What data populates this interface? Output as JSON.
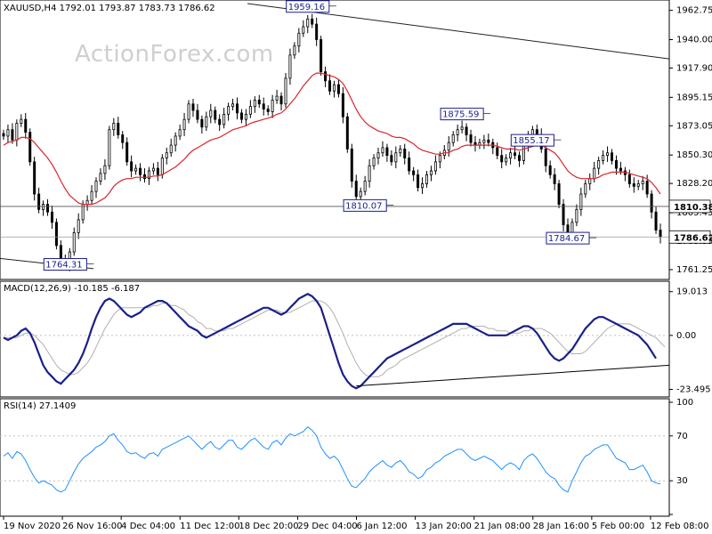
{
  "instrument": "XAUUSD,H4",
  "quote": "1792.01 1793.87 1783.73 1786.62",
  "watermark": "ActionForex.com",
  "colors": {
    "candle": "#000000",
    "ema": "#d9262c",
    "macd": "#1a1f8a",
    "signal": "#b0b0b0",
    "rsi": "#1e90ff",
    "grid": "#d8d8d8",
    "label_box": "#1a1f8a"
  },
  "chart_data": [
    {
      "type": "candlestick",
      "title": "XAUUSD,H4",
      "y_ticks": [
        "1962.75",
        "1940.00",
        "1917.90",
        "1895.15",
        "1873.05",
        "1850.30",
        "1828.20",
        "1805.45",
        "1783.35",
        "1761.25"
      ],
      "ylim": [
        1755,
        1968
      ],
      "price_labels": [
        "1810.38",
        "1786.62"
      ],
      "current_price": 1786.62,
      "support_level": 1810.38,
      "annotations": [
        {
          "text": "1959.16",
          "value": 1959.16,
          "date": "5 Jan 2021"
        },
        {
          "text": "1764.31",
          "value": 1764.31,
          "date": "30 Nov 2020"
        },
        {
          "text": "1810.07",
          "value": 1810.07,
          "date": "14 Jan 2021"
        },
        {
          "text": "1875.59",
          "value": 1875.59,
          "date": "25 Jan 2021"
        },
        {
          "text": "1784.67",
          "value": 1784.67,
          "date": "4 Feb 2021"
        },
        {
          "text": "1855.17",
          "value": 1855.17,
          "date": "10 Feb 2021"
        }
      ],
      "x_labels": [
        "19 Nov 2020",
        "26 Nov 16:00",
        "4 Dec 04:00",
        "11 Dec 12:00",
        "18 Dec 20:00",
        "29 Dec 04:00",
        "6 Jan 12:00",
        "13 Jan 20:00",
        "21 Jan 08:00",
        "28 Jan 16:00",
        "5 Feb 00:00",
        "12 Feb 08:00"
      ],
      "close": [
        1865,
        1870,
        1862,
        1875,
        1878,
        1868,
        1845,
        1820,
        1808,
        1812,
        1806,
        1798,
        1780,
        1768,
        1765,
        1775,
        1790,
        1800,
        1812,
        1815,
        1822,
        1830,
        1836,
        1842,
        1870,
        1875,
        1866,
        1860,
        1845,
        1838,
        1840,
        1835,
        1832,
        1838,
        1840,
        1835,
        1848,
        1852,
        1858,
        1865,
        1870,
        1878,
        1890,
        1885,
        1878,
        1872,
        1880,
        1885,
        1878,
        1874,
        1882,
        1888,
        1890,
        1883,
        1878,
        1882,
        1888,
        1893,
        1890,
        1886,
        1884,
        1893,
        1896,
        1890,
        1910,
        1928,
        1935,
        1945,
        1950,
        1956,
        1952,
        1940,
        1915,
        1908,
        1900,
        1905,
        1898,
        1880,
        1855,
        1830,
        1818,
        1822,
        1830,
        1842,
        1848,
        1852,
        1856,
        1850,
        1845,
        1852,
        1855,
        1848,
        1838,
        1835,
        1825,
        1828,
        1835,
        1838,
        1845,
        1850,
        1854,
        1860,
        1866,
        1870,
        1872,
        1866,
        1860,
        1858,
        1860,
        1862,
        1860,
        1856,
        1850,
        1845,
        1848,
        1852,
        1850,
        1846,
        1858,
        1864,
        1870,
        1866,
        1855,
        1842,
        1835,
        1828,
        1812,
        1796,
        1788,
        1798,
        1808,
        1820,
        1828,
        1832,
        1840,
        1846,
        1850,
        1852,
        1846,
        1840,
        1838,
        1835,
        1828,
        1826,
        1828,
        1830,
        1820,
        1806,
        1792,
        1786.62
      ],
      "ema_close": [
        1858,
        1860,
        1861,
        1862,
        1864,
        1864,
        1863,
        1860,
        1856,
        1852,
        1848,
        1843,
        1837,
        1830,
        1824,
        1819,
        1816,
        1813,
        1812,
        1812,
        1812,
        1813,
        1815,
        1817,
        1821,
        1826,
        1829,
        1831,
        1832,
        1832,
        1833,
        1833,
        1833,
        1833,
        1834,
        1834,
        1835,
        1837,
        1839,
        1841,
        1844,
        1847,
        1851,
        1854,
        1856,
        1858,
        1860,
        1862,
        1863,
        1864,
        1866,
        1868,
        1870,
        1871,
        1872,
        1873,
        1875,
        1876,
        1877,
        1878,
        1879,
        1880,
        1882,
        1883,
        1886,
        1890,
        1894,
        1899,
        1904,
        1908,
        1912,
        1914,
        1914,
        1913,
        1912,
        1911,
        1909,
        1906,
        1900,
        1893,
        1886,
        1880,
        1876,
        1873,
        1871,
        1869,
        1868,
        1867,
        1865,
        1864,
        1864,
        1863,
        1861,
        1859,
        1856,
        1854,
        1853,
        1852,
        1851,
        1851,
        1852,
        1852,
        1854,
        1855,
        1857,
        1858,
        1858,
        1858,
        1858,
        1858,
        1858,
        1858,
        1857,
        1856,
        1855,
        1855,
        1855,
        1854,
        1855,
        1856,
        1857,
        1858,
        1858,
        1856,
        1854,
        1852,
        1848,
        1843,
        1838,
        1835,
        1833,
        1832,
        1832,
        1832,
        1832,
        1833,
        1835,
        1836,
        1837,
        1837,
        1837,
        1837,
        1836,
        1835,
        1834,
        1833,
        1832,
        1829,
        1825,
        1820
      ],
      "resistance_trendline": [
        {
          "date": "5 Jan 2021",
          "value": 1959.16
        },
        {
          "date": "15 Feb 2021",
          "value": 1925
        }
      ]
    },
    {
      "type": "line",
      "title": "MACD(12,26,9)",
      "values_text": "-10.185 -6.187",
      "ylim": [
        -26,
        22
      ],
      "y_ticks": [
        "19.013",
        "0.00",
        "-23.495"
      ],
      "series": [
        {
          "values": [
            -1,
            -2,
            -1,
            0,
            2,
            3,
            1,
            -3,
            -8,
            -13,
            -16,
            -18,
            -20,
            -21,
            -19,
            -17,
            -15,
            -12,
            -8,
            -3,
            3,
            8,
            12,
            15,
            16,
            15,
            13,
            11,
            9,
            8,
            9,
            10,
            12,
            13,
            14,
            15,
            15,
            14,
            12,
            10,
            8,
            6,
            4,
            3,
            2,
            0,
            -1,
            0,
            1,
            2,
            3,
            4,
            5,
            6,
            7,
            8,
            9,
            10,
            11,
            12,
            12,
            11,
            10,
            9,
            10,
            12,
            14,
            16,
            17,
            18,
            17,
            15,
            12,
            6,
            0,
            -6,
            -12,
            -17,
            -20,
            -22,
            -23,
            -22,
            -20,
            -18,
            -16,
            -14,
            -12,
            -10,
            -9,
            -8,
            -7,
            -6,
            -5,
            -4,
            -3,
            -2,
            -1,
            0,
            1,
            2,
            3,
            4,
            5,
            5,
            5,
            5,
            4,
            3,
            2,
            1,
            0,
            0,
            0,
            0,
            0,
            1,
            2,
            3,
            4,
            4,
            3,
            1,
            -2,
            -5,
            -8,
            -10,
            -11,
            -10,
            -8,
            -6,
            -3,
            0,
            3,
            5,
            7,
            8,
            8,
            7,
            6,
            5,
            4,
            3,
            2,
            1,
            0,
            -2,
            -4,
            -7,
            -10
          ]
        },
        {
          "values": [
            -1,
            -1,
            -1,
            -1,
            0,
            1,
            1,
            0,
            -2,
            -4,
            -7,
            -10,
            -13,
            -15,
            -16,
            -17,
            -17,
            -16,
            -14,
            -12,
            -9,
            -5,
            -1,
            3,
            6,
            9,
            11,
            12,
            12,
            12,
            12,
            12,
            12,
            12,
            13,
            13,
            14,
            14,
            13,
            13,
            12,
            11,
            9,
            8,
            6,
            5,
            3,
            3,
            2,
            2,
            2,
            3,
            3,
            4,
            5,
            6,
            7,
            8,
            9,
            10,
            11,
            11,
            11,
            10,
            10,
            10,
            11,
            12,
            13,
            14,
            15,
            15,
            15,
            14,
            12,
            9,
            5,
            1,
            -4,
            -8,
            -12,
            -15,
            -17,
            -18,
            -18,
            -18,
            -17,
            -15,
            -14,
            -13,
            -11,
            -10,
            -9,
            -8,
            -7,
            -6,
            -5,
            -4,
            -3,
            -2,
            -1,
            0,
            1,
            2,
            3,
            3,
            4,
            4,
            4,
            4,
            3,
            3,
            2,
            2,
            2,
            1,
            1,
            1,
            2,
            2,
            3,
            3,
            3,
            2,
            1,
            -1,
            -3,
            -5,
            -7,
            -8,
            -8,
            -8,
            -7,
            -5,
            -3,
            -1,
            1,
            3,
            4,
            5,
            5,
            5,
            5,
            4,
            3,
            2,
            1,
            0,
            -1,
            -3,
            -5
          ]
        }
      ],
      "trendline": [
        {
          "date": "7 Jan 2021",
          "value": -22
        },
        {
          "date": "15 Feb 2021",
          "value": -13
        }
      ]
    },
    {
      "type": "line",
      "title": "RSI(14)",
      "values_text": "27.1409",
      "ylim": [
        0,
        100
      ],
      "y_ticks": [
        "100",
        "70",
        "30",
        "0"
      ],
      "reference_levels": [
        70,
        30
      ],
      "series": [
        {
          "values": [
            52,
            55,
            50,
            56,
            54,
            48,
            40,
            33,
            28,
            30,
            28,
            26,
            22,
            20,
            22,
            30,
            38,
            45,
            50,
            53,
            56,
            60,
            62,
            65,
            70,
            72,
            66,
            62,
            56,
            54,
            55,
            52,
            50,
            54,
            55,
            52,
            58,
            60,
            62,
            64,
            66,
            68,
            70,
            66,
            62,
            58,
            62,
            65,
            60,
            58,
            62,
            66,
            66,
            60,
            58,
            62,
            66,
            68,
            64,
            60,
            58,
            64,
            66,
            62,
            68,
            72,
            70,
            72,
            74,
            78,
            75,
            70,
            60,
            54,
            50,
            52,
            48,
            40,
            32,
            25,
            24,
            28,
            32,
            38,
            42,
            45,
            48,
            44,
            42,
            46,
            48,
            44,
            38,
            36,
            32,
            34,
            40,
            42,
            46,
            48,
            52,
            54,
            56,
            58,
            58,
            54,
            50,
            48,
            50,
            52,
            50,
            48,
            44,
            40,
            44,
            46,
            44,
            40,
            48,
            52,
            54,
            50,
            44,
            38,
            34,
            32,
            26,
            22,
            20,
            30,
            38,
            46,
            52,
            54,
            58,
            60,
            62,
            62,
            56,
            50,
            48,
            46,
            40,
            40,
            42,
            44,
            38,
            30,
            28,
            27.1409
          ]
        }
      ]
    }
  ]
}
